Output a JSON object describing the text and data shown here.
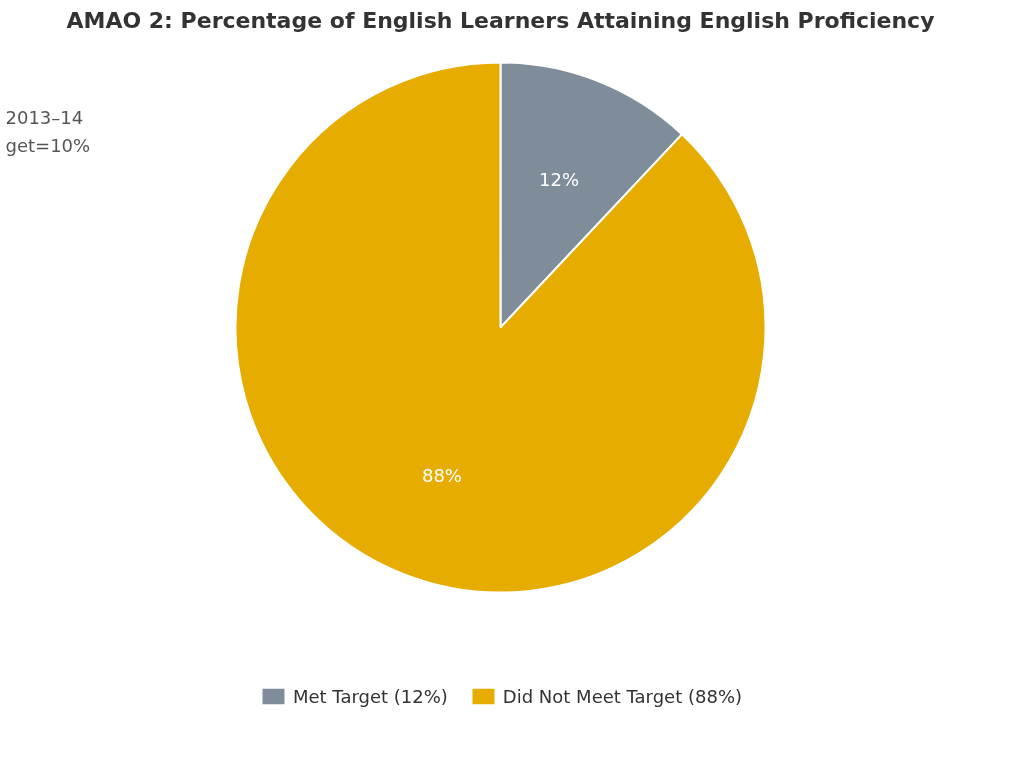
{
  "chart_data": {
    "type": "pie",
    "title": "AMAO 2: Percentage of English Learners Attaining English Proficiency",
    "categories": [
      "Met Target (12%)",
      "Did Not Meet Target (88%)"
    ],
    "values": [
      12,
      88
    ],
    "colors": [
      "#7f8d9a",
      "#e6ac00"
    ],
    "value_labels": [
      "12%",
      "88%"
    ],
    "annotations": [
      "2013–14",
      "get=10%"
    ],
    "legend": "bottom"
  }
}
